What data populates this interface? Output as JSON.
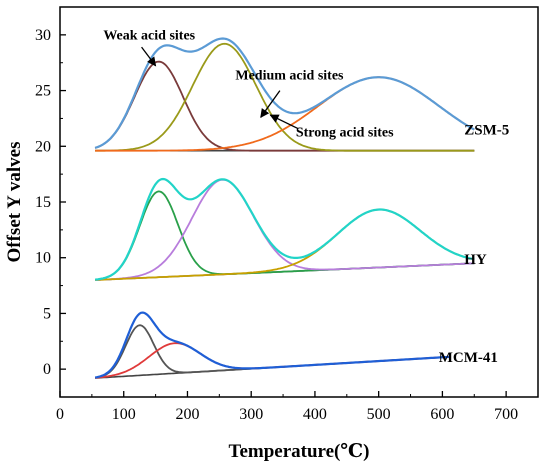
{
  "chart_data": {
    "type": "line",
    "title": "",
    "xlabel": "Temperature(℃)",
    "ylabel": "Offset Y valves",
    "xlim": [
      0,
      750
    ],
    "ylim": [
      -2.5,
      32.5
    ],
    "xticks": [
      "0",
      "100",
      "200",
      "300",
      "400",
      "500",
      "600",
      "700"
    ],
    "yticks": [
      "0",
      "5",
      "10",
      "15",
      "20",
      "25",
      "30"
    ],
    "grid": false,
    "legend": "none",
    "annotations": {
      "weak": "Weak acid sites",
      "medium": "Medium acid sites",
      "strong": "Strong acid sites"
    },
    "groups": [
      {
        "label": "ZSM-5",
        "x_range": [
          55,
          650
        ],
        "baseline": {
          "type": "linear",
          "x": [
            55,
            650
          ],
          "y": [
            19.6,
            19.6
          ]
        },
        "components": [
          {
            "role": "weak",
            "center": 155,
            "height": 8.0,
            "width": 38,
            "color": "#7a3b3b"
          },
          {
            "role": "medium",
            "center": 258,
            "height": 9.6,
            "width": 50,
            "color": "#9a9a1a"
          },
          {
            "role": "strong",
            "center": 500,
            "height": 6.6,
            "width": 95,
            "color": "#f06a1c"
          }
        ],
        "envelope_color": "#5b9bd5"
      },
      {
        "label": "HY",
        "x_range": [
          55,
          650
        ],
        "baseline": {
          "type": "linear",
          "x": [
            55,
            650
          ],
          "y": [
            8.0,
            9.5
          ]
        },
        "components": [
          {
            "role": "weak",
            "center": 155,
            "height": 7.7,
            "width": 30,
            "color": "#2aa04a"
          },
          {
            "role": "medium",
            "center": 255,
            "height": 8.5,
            "width": 48,
            "color": "#b87ddc"
          },
          {
            "role": "strong",
            "center": 500,
            "height": 5.2,
            "width": 65,
            "color": "#c8a000"
          }
        ],
        "envelope_color": "#22d4c8"
      },
      {
        "label": "MCM-41",
        "x_range": [
          55,
          610
        ],
        "baseline": {
          "type": "linear",
          "x": [
            55,
            610
          ],
          "y": [
            -0.8,
            1.1
          ]
        },
        "components": [
          {
            "role": "weak",
            "center": 125,
            "height": 4.5,
            "width": 22,
            "color": "#555555"
          },
          {
            "role": "medium",
            "center": 180,
            "height": 2.7,
            "width": 40,
            "color": "#e03a3a"
          }
        ],
        "envelope_color": "#1f5fd6"
      }
    ]
  }
}
